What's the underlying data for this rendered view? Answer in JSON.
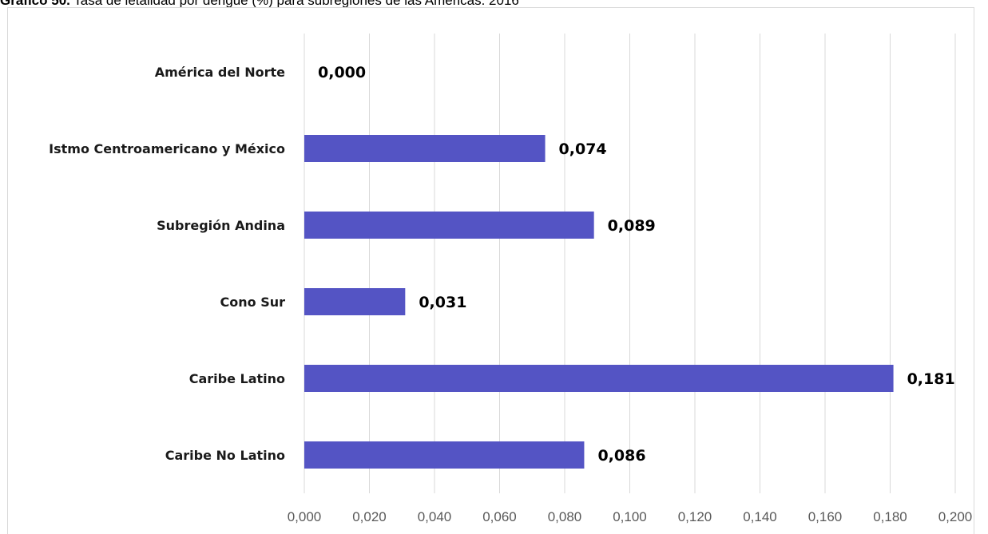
{
  "caption": {
    "prefix": "Gráfico 50.",
    "text": " Tasa de letalidad por dengue (%) para subregiones de las Américas. 2016"
  },
  "chart_data": {
    "type": "bar",
    "orientation": "horizontal",
    "categories": [
      "América del Norte",
      "Istmo Centroamericano y México",
      "Subregión Andina",
      "Cono Sur",
      "Caribe Latino",
      "Caribe No Latino"
    ],
    "values": [
      0.0,
      0.074,
      0.089,
      0.031,
      0.181,
      0.086
    ],
    "value_labels": [
      "0,000",
      "0,074",
      "0,089",
      "0,031",
      "0,181",
      "0,086"
    ],
    "xlim": [
      0,
      0.2
    ],
    "x_ticks": [
      "0,000",
      "0,020",
      "0,040",
      "0,060",
      "0,080",
      "0,100",
      "0,120",
      "0,140",
      "0,160",
      "0,180",
      "0,200"
    ],
    "grid": "vertical",
    "bar_color": "#5454c4",
    "grid_color": "#d9d9d9"
  }
}
